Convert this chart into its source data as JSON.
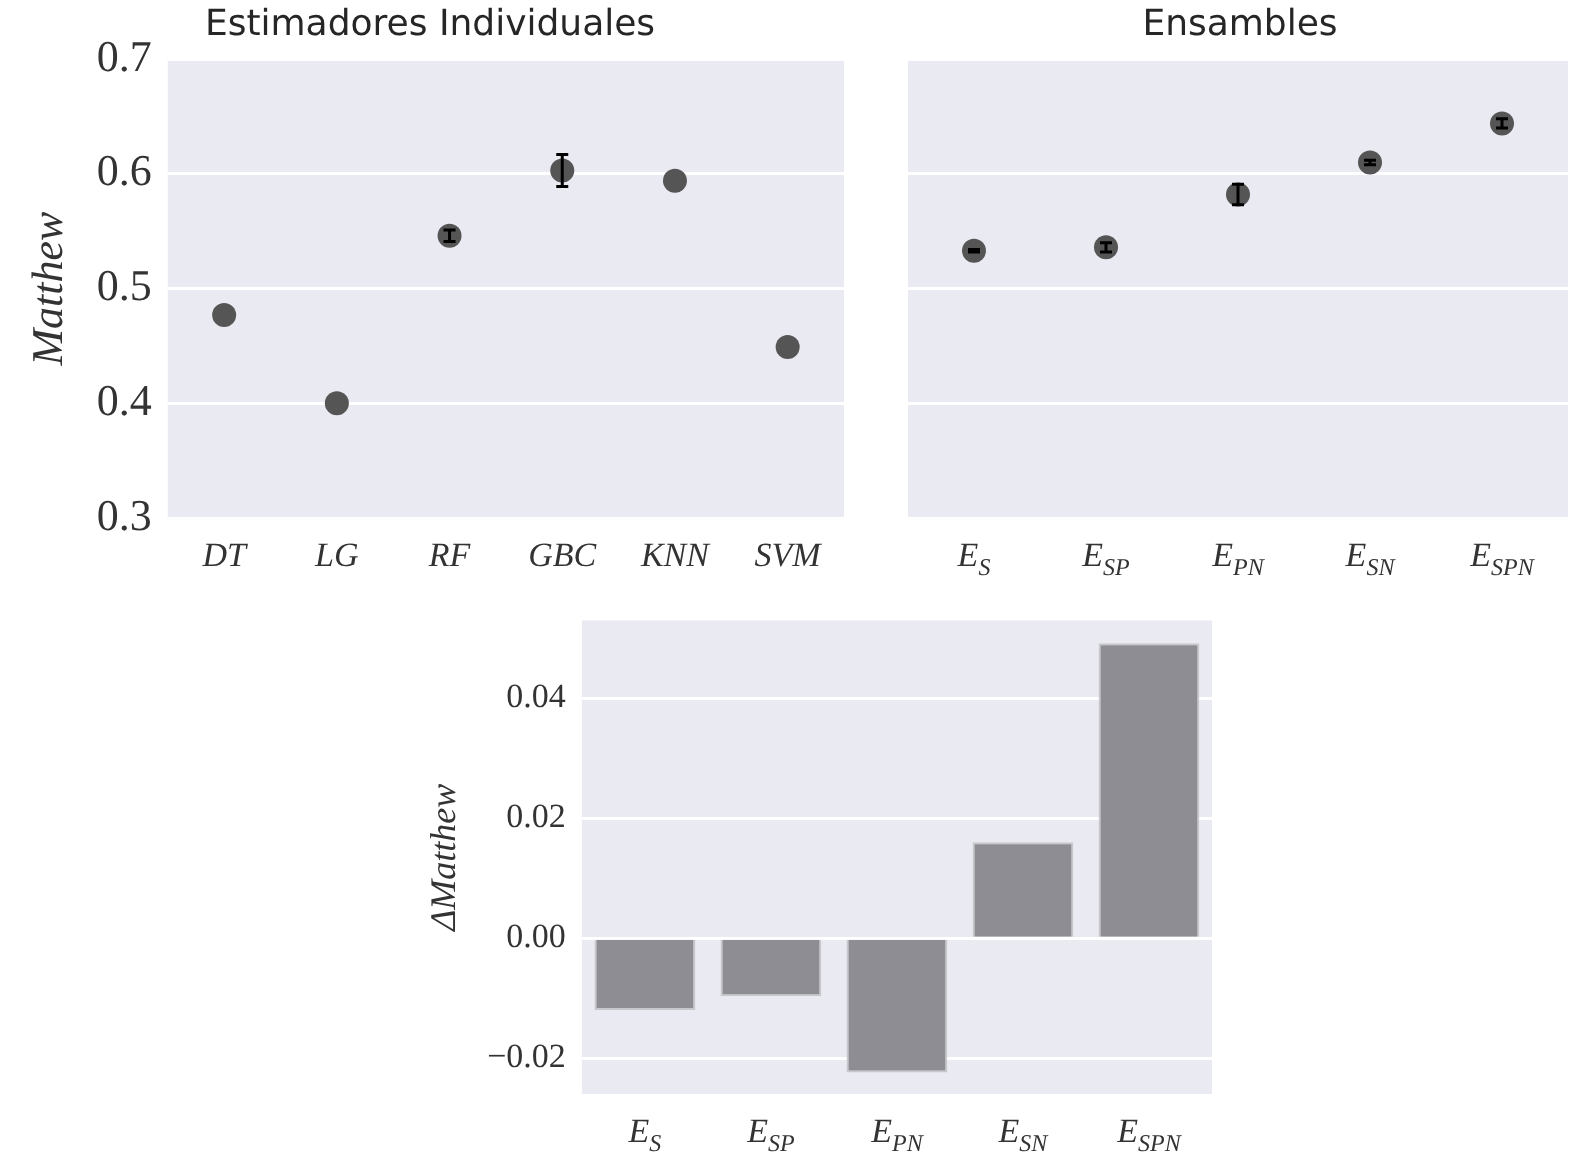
{
  "chart_data": [
    {
      "type": "scatter",
      "title": "Estimadores Individuales",
      "ylabel": "Matthew",
      "categories": [
        "DT",
        "LG",
        "RF",
        "GBC",
        "KNN",
        "SVM"
      ],
      "series": [
        {
          "color": "#555555",
          "values": [
            0.477,
            0.4,
            0.546,
            0.603,
            0.594,
            0.449
          ],
          "errors": [
            null,
            null,
            0.005,
            0.014,
            null,
            null
          ]
        }
      ],
      "ylim": [
        0.3,
        0.7
      ],
      "yticks": [
        0.3,
        0.4,
        0.5,
        0.6,
        0.7
      ],
      "grid": "y",
      "marker": "circle"
    },
    {
      "type": "scatter",
      "title": "Ensambles",
      "categories": [
        "E$_{S}$",
        "E$_{SP}$",
        "E$_{PN}$",
        "E$_{SN}$",
        "E$_{SPN}$"
      ],
      "series": [
        {
          "color": "#555555",
          "values": [
            0.533,
            0.536,
            0.582,
            0.61,
            0.644
          ],
          "errors": [
            0.001,
            0.004,
            0.009,
            0.002,
            0.004
          ]
        }
      ],
      "ylim": [
        0.3,
        0.7
      ],
      "yticks": [
        0.3,
        0.4,
        0.5,
        0.6,
        0.7
      ],
      "grid": "y",
      "marker": "circle",
      "tick_labels": "x"
    },
    {
      "type": "bar",
      "ylabel": "ΔMatthew",
      "categories": [
        "E$_{S}$",
        "E$_{SP}$",
        "E$_{PN}$",
        "E$_{SN}$",
        "E$_{SPN}$"
      ],
      "series": [
        {
          "color": "#8e8d93",
          "values": [
            -0.012,
            -0.0097,
            -0.0224,
            0.016,
            0.0492
          ]
        }
      ],
      "ylim": [
        -0.026,
        0.053
      ],
      "yticks": [
        {
          "value": -0.02,
          "label": "−0.02"
        },
        {
          "value": 0,
          "label": "0.00"
        },
        0.02,
        0.04
      ],
      "grid": "y"
    }
  ]
}
